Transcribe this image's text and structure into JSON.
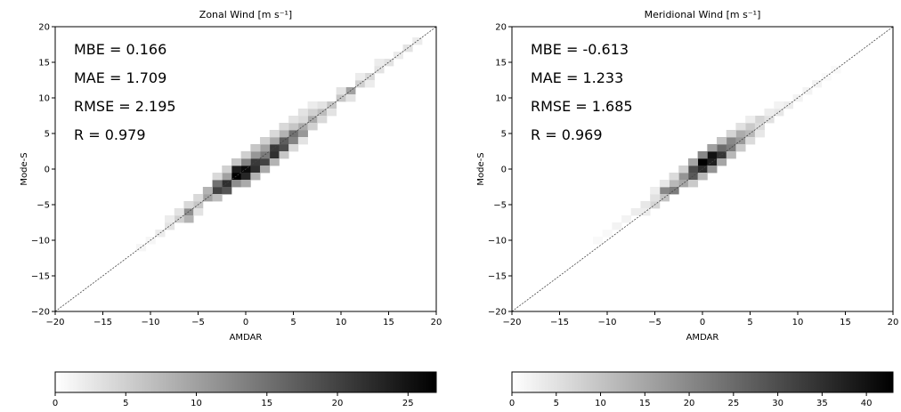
{
  "chart_data": [
    {
      "type": "heatmap",
      "title": "Zonal Wind [m s⁻¹]",
      "xlabel": "AMDAR",
      "ylabel": "Mode-S",
      "xlim": [
        -20,
        20
      ],
      "ylim": [
        -20,
        20
      ],
      "xticks": [
        "−20",
        "−15",
        "−10",
        "−5",
        "0",
        "5",
        "10",
        "15",
        "20"
      ],
      "yticks": [
        "−20",
        "−15",
        "−10",
        "−5",
        "0",
        "5",
        "10",
        "15",
        "20"
      ],
      "reference_line": "y = x (dashed)",
      "stats": [
        "MBE = 0.166",
        "MAE = 1.709",
        "RMSE = 2.195",
        "R = 0.979"
      ],
      "colorbar": {
        "min": 0,
        "max": 27,
        "ticks": [
          0,
          5,
          10,
          15,
          20,
          25
        ]
      },
      "bin_size": 1,
      "cells": [
        [
          -1,
          -1,
          27
        ],
        [
          0,
          0,
          26
        ],
        [
          -1,
          0,
          24
        ],
        [
          0,
          -1,
          23
        ],
        [
          1,
          0,
          22
        ],
        [
          1,
          1,
          21
        ],
        [
          2,
          1,
          20
        ],
        [
          3,
          2,
          22
        ],
        [
          3,
          3,
          21
        ],
        [
          4,
          3,
          19
        ],
        [
          4,
          4,
          17
        ],
        [
          -3,
          -3,
          20
        ],
        [
          -2,
          -2,
          22
        ],
        [
          -2,
          -3,
          18
        ],
        [
          -3,
          -2,
          15
        ],
        [
          5,
          5,
          15
        ],
        [
          5,
          4,
          13
        ],
        [
          6,
          5,
          11
        ],
        [
          6,
          6,
          9
        ],
        [
          7,
          7,
          9
        ],
        [
          8,
          8,
          7
        ],
        [
          9,
          9,
          6
        ],
        [
          10,
          10,
          6
        ],
        [
          11,
          11,
          10
        ],
        [
          12,
          12,
          5
        ],
        [
          13,
          13,
          4
        ],
        [
          14,
          14,
          3
        ],
        [
          15,
          15,
          3
        ],
        [
          16,
          16,
          2
        ],
        [
          17,
          17,
          3
        ],
        [
          18,
          18,
          2
        ],
        [
          -4,
          -4,
          10
        ],
        [
          -4,
          -3,
          8
        ],
        [
          -5,
          -5,
          6
        ],
        [
          -6,
          -6,
          12
        ],
        [
          -6,
          -7,
          8
        ],
        [
          -7,
          -7,
          5
        ],
        [
          -8,
          -8,
          3
        ],
        [
          -9,
          -9,
          2
        ],
        [
          -5,
          -4,
          4
        ],
        [
          -10,
          -10,
          1
        ],
        [
          -11,
          -11,
          1
        ],
        [
          2,
          2,
          14
        ],
        [
          2,
          3,
          10
        ],
        [
          0,
          1,
          13
        ],
        [
          1,
          2,
          11
        ],
        [
          -1,
          -2,
          12
        ],
        [
          0,
          -2,
          9
        ],
        [
          3,
          4,
          9
        ],
        [
          4,
          5,
          8
        ],
        [
          -2,
          -1,
          10
        ],
        [
          1,
          -1,
          8
        ],
        [
          2,
          0,
          9
        ],
        [
          3,
          1,
          8
        ],
        [
          5,
          6,
          6
        ],
        [
          6,
          7,
          4
        ],
        [
          7,
          8,
          5
        ],
        [
          8,
          7,
          4
        ],
        [
          7,
          6,
          5
        ],
        [
          -3,
          -4,
          7
        ],
        [
          -1,
          1,
          6
        ],
        [
          0,
          2,
          5
        ],
        [
          4,
          2,
          6
        ],
        [
          5,
          3,
          4
        ],
        [
          6,
          4,
          3
        ],
        [
          8,
          9,
          3
        ],
        [
          9,
          8,
          3
        ],
        [
          10,
          11,
          3
        ],
        [
          11,
          10,
          3
        ],
        [
          12,
          13,
          2
        ],
        [
          13,
          12,
          2
        ],
        [
          14,
          15,
          2
        ],
        [
          -7,
          -6,
          3
        ],
        [
          -8,
          -7,
          2
        ],
        [
          -5,
          -6,
          3
        ],
        [
          -2,
          0,
          5
        ],
        [
          -3,
          -1,
          4
        ],
        [
          1,
          3,
          6
        ],
        [
          2,
          4,
          5
        ],
        [
          3,
          5,
          4
        ],
        [
          4,
          6,
          4
        ],
        [
          5,
          7,
          3
        ],
        [
          6,
          8,
          3
        ],
        [
          7,
          9,
          2
        ],
        [
          -6,
          -5,
          4
        ]
      ]
    },
    {
      "type": "heatmap",
      "title": "Meridional Wind [m s⁻¹]",
      "xlabel": "AMDAR",
      "ylabel": "Mode-S",
      "xlim": [
        -20,
        20
      ],
      "ylim": [
        -20,
        20
      ],
      "xticks": [
        "−20",
        "−15",
        "−10",
        "−5",
        "0",
        "5",
        "10",
        "15",
        "20"
      ],
      "yticks": [
        "−20",
        "−15",
        "−10",
        "−5",
        "0",
        "5",
        "10",
        "15",
        "20"
      ],
      "reference_line": "y = x (dashed)",
      "stats": [
        "MBE = -0.613",
        "MAE = 1.233",
        "RMSE = 1.685",
        "R = 0.969"
      ],
      "colorbar": {
        "min": 0,
        "max": 43,
        "ticks": [
          0,
          5,
          10,
          15,
          20,
          25,
          30,
          35,
          40
        ]
      },
      "bin_size": 1,
      "cells": [
        [
          0,
          1,
          43
        ],
        [
          1,
          2,
          40
        ],
        [
          1,
          1,
          38
        ],
        [
          0,
          0,
          36
        ],
        [
          -1,
          0,
          30
        ],
        [
          2,
          2,
          34
        ],
        [
          2,
          3,
          25
        ],
        [
          -1,
          -1,
          28
        ],
        [
          3,
          3,
          22
        ],
        [
          3,
          4,
          20
        ],
        [
          4,
          4,
          17
        ],
        [
          4,
          5,
          14
        ],
        [
          5,
          5,
          12
        ],
        [
          5,
          6,
          9
        ],
        [
          6,
          7,
          7
        ],
        [
          7,
          7,
          5
        ],
        [
          -2,
          -1,
          18
        ],
        [
          -2,
          -2,
          15
        ],
        [
          -3,
          -2,
          12
        ],
        [
          -3,
          -3,
          22
        ],
        [
          -4,
          -3,
          20
        ],
        [
          -4,
          -4,
          10
        ],
        [
          -5,
          -5,
          7
        ],
        [
          -5,
          -4,
          5
        ],
        [
          -6,
          -5,
          4
        ],
        [
          -6,
          -6,
          3
        ],
        [
          -7,
          -6,
          3
        ],
        [
          -8,
          -7,
          2
        ],
        [
          -9,
          -8,
          2
        ],
        [
          -10,
          -9,
          1
        ],
        [
          -11,
          -10,
          1
        ],
        [
          8,
          8,
          4
        ],
        [
          9,
          9,
          3
        ],
        [
          10,
          10,
          2
        ],
        [
          11,
          11,
          2
        ],
        [
          12,
          12,
          2
        ],
        [
          13,
          13,
          1
        ],
        [
          14,
          14,
          1
        ],
        [
          1,
          0,
          18
        ],
        [
          2,
          1,
          15
        ],
        [
          0,
          2,
          20
        ],
        [
          -1,
          1,
          15
        ],
        [
          1,
          3,
          16
        ],
        [
          3,
          2,
          12
        ],
        [
          4,
          3,
          9
        ],
        [
          0,
          -1,
          12
        ],
        [
          -1,
          -2,
          9
        ],
        [
          2,
          4,
          10
        ],
        [
          5,
          4,
          6
        ],
        [
          6,
          6,
          6
        ],
        [
          6,
          5,
          4
        ],
        [
          -3,
          -1,
          6
        ],
        [
          -2,
          0,
          8
        ],
        [
          3,
          5,
          7
        ],
        [
          4,
          6,
          5
        ],
        [
          7,
          8,
          3
        ],
        [
          8,
          9,
          2
        ],
        [
          -4,
          -2,
          4
        ],
        [
          -5,
          -3,
          3
        ],
        [
          5,
          7,
          3
        ]
      ]
    }
  ]
}
